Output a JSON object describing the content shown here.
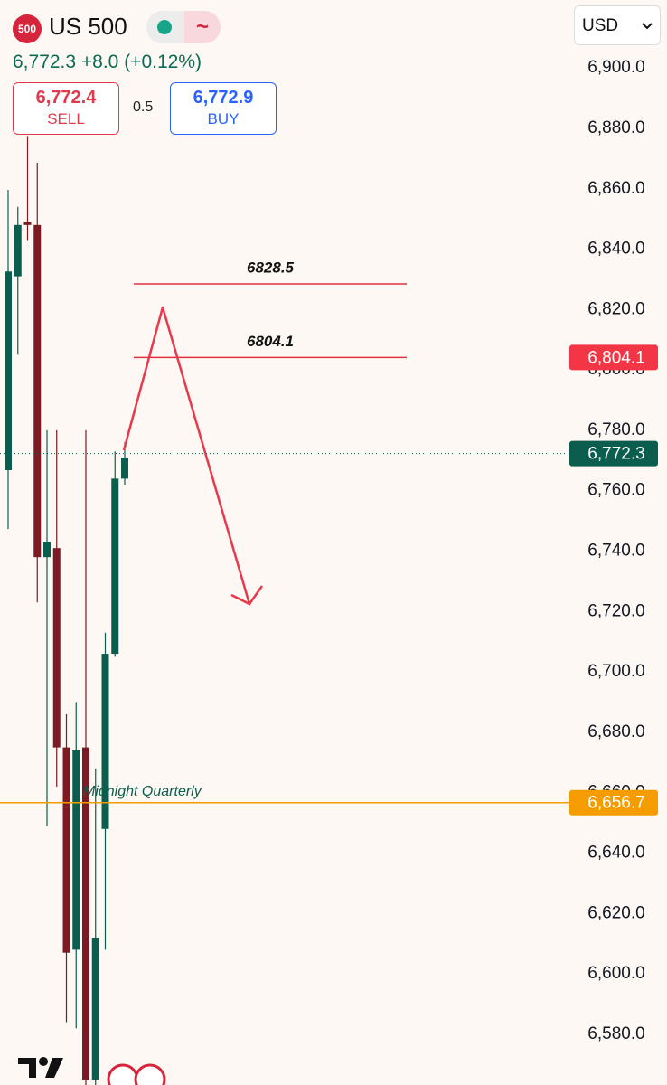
{
  "chart_data": {
    "type": "candlestick",
    "symbol_badge": "500",
    "symbol": "US 500",
    "quote": "6,772.3 +8.0 (+0.12%)",
    "sell": {
      "price": "6,772.4",
      "label": "SELL"
    },
    "spread": "0.5",
    "buy": {
      "price": "6,772.9",
      "label": "BUY"
    },
    "currency": "USD",
    "categories": [
      null,
      null,
      null,
      null,
      null,
      null,
      null,
      null,
      null,
      null,
      null,
      null,
      null
    ],
    "open": [
      6766.8,
      6831,
      6849,
      6848,
      6738,
      6741,
      6675,
      6608,
      6675,
      6565,
      6648,
      6706,
      6764
    ],
    "high": [
      6859.6,
      6854,
      6877.5,
      6868.6,
      6780,
      6780,
      6686,
      6690,
      6780,
      6668,
      6713,
      6773,
      6776
    ],
    "low": [
      6747.3,
      6805,
      6843,
      6723,
      6649,
      6662,
      6584,
      6582,
      6563,
      6563,
      6608,
      6705,
      6762
    ],
    "close": [
      6832.6,
      6848,
      6848,
      6738,
      6743,
      6675,
      6607,
      6674,
      6565,
      6612,
      6706,
      6764,
      6771
    ],
    "up_color": "#0b5e4e",
    "down_color": "#7b1a24",
    "ylim": [
      6563.2,
      6922.5
    ],
    "yticks": [
      {
        "value": 6900,
        "label": "6,900.0"
      },
      {
        "value": 6880,
        "label": "6,880.0"
      },
      {
        "value": 6860,
        "label": "6,860.0"
      },
      {
        "value": 6840,
        "label": "6,840.0"
      },
      {
        "value": 6820,
        "label": "6,820.0"
      },
      {
        "value": 6800,
        "label": "6,800.0"
      },
      {
        "value": 6780,
        "label": "6,780.0"
      },
      {
        "value": 6760,
        "label": "6,760.0"
      },
      {
        "value": 6740,
        "label": "6,740.0"
      },
      {
        "value": 6720,
        "label": "6,720.0"
      },
      {
        "value": 6700,
        "label": "6,700.0"
      },
      {
        "value": 6680,
        "label": "6,680.0"
      },
      {
        "value": 6660,
        "label": "6,660.0"
      },
      {
        "value": 6640,
        "label": "6,640.0"
      },
      {
        "value": 6620,
        "label": "6,620.0"
      },
      {
        "value": 6600,
        "label": "6,600.0"
      },
      {
        "value": 6580,
        "label": "6,580.0"
      }
    ],
    "levels": [
      {
        "value": 6828.5,
        "color": "#e0313f"
      },
      {
        "value": 6804.1,
        "color": "#e0313f"
      }
    ],
    "price_tags": [
      {
        "value": 6804.1,
        "label": "6,804.1",
        "color": "#f23645"
      },
      {
        "value": 6772.3,
        "label": "6,772.3",
        "color": "#0b5e4e",
        "line": "dotted"
      },
      {
        "value": 6656.7,
        "label": "6,656.7",
        "color": "#f59c00",
        "line": "solid",
        "name": "Midnight Quarterly"
      }
    ]
  }
}
